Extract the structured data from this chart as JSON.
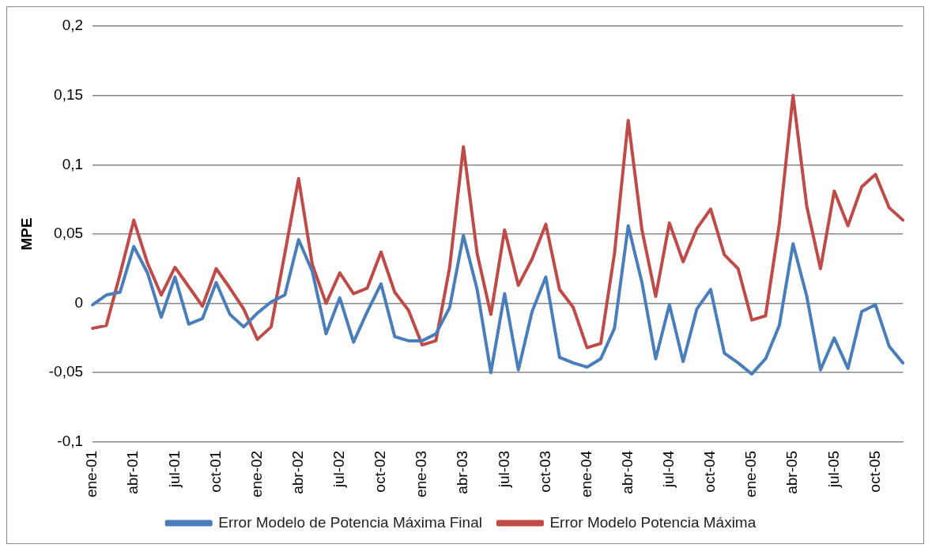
{
  "chart_data": {
    "type": "line",
    "ylabel": "MPE",
    "categories": [
      "ene-01",
      null,
      null,
      "abr-01",
      null,
      null,
      "jul-01",
      null,
      null,
      "oct-01",
      null,
      null,
      "ene-02",
      null,
      null,
      "abr-02",
      null,
      null,
      "jul-02",
      null,
      null,
      "oct-02",
      null,
      null,
      "ene-03",
      null,
      null,
      "abr-03",
      null,
      null,
      "jul-03",
      null,
      null,
      "oct-03",
      null,
      null,
      "ene-04",
      null,
      null,
      "abr-04",
      null,
      null,
      "jul-04",
      null,
      null,
      "oct-04",
      null,
      null,
      "ene-05",
      null,
      null,
      "abr-05",
      null,
      null,
      "jul-05",
      null,
      null,
      "oct-05",
      null,
      null
    ],
    "series": [
      {
        "name": "Error Modelo de Potencia Máxima Final",
        "color": "#4a7ebb",
        "values": [
          -0.001,
          0.006,
          0.008,
          0.041,
          0.022,
          -0.01,
          0.019,
          -0.015,
          -0.011,
          0.015,
          -0.008,
          -0.017,
          -0.007,
          0.001,
          0.006,
          0.046,
          0.023,
          -0.022,
          0.004,
          -0.028,
          -0.006,
          0.014,
          -0.024,
          -0.027,
          -0.027,
          -0.022,
          -0.003,
          0.049,
          0.01,
          -0.05,
          0.007,
          -0.048,
          -0.006,
          0.019,
          -0.039,
          -0.043,
          -0.046,
          -0.04,
          -0.018,
          0.056,
          0.015,
          -0.04,
          -0.001,
          -0.042,
          -0.004,
          0.01,
          -0.036,
          -0.043,
          -0.051,
          -0.04,
          -0.016,
          0.043,
          0.005,
          -0.048,
          -0.025,
          -0.047,
          -0.006,
          -0.001,
          -0.031,
          -0.043
        ]
      },
      {
        "name": "Error Modelo Potencia Máxima",
        "color": "#be4b48",
        "values": [
          -0.018,
          -0.016,
          0.021,
          0.06,
          0.029,
          0.006,
          0.026,
          0.012,
          -0.002,
          0.025,
          0.011,
          -0.004,
          -0.026,
          -0.017,
          0.036,
          0.09,
          0.028,
          0.0,
          0.022,
          0.007,
          0.011,
          0.037,
          0.008,
          -0.005,
          -0.03,
          -0.027,
          0.026,
          0.113,
          0.036,
          -0.008,
          0.053,
          0.013,
          0.032,
          0.057,
          0.01,
          -0.003,
          -0.032,
          -0.029,
          0.036,
          0.132,
          0.053,
          0.005,
          0.058,
          0.03,
          0.054,
          0.068,
          0.035,
          0.025,
          -0.012,
          -0.009,
          0.057,
          0.15,
          0.07,
          0.025,
          0.081,
          0.056,
          0.084,
          0.093,
          0.069,
          0.06
        ]
      }
    ],
    "ylim": [
      -0.1,
      0.2
    ],
    "yticks": [
      {
        "value": -0.1,
        "label": "-0,1"
      },
      {
        "value": -0.05,
        "label": "-0,05"
      },
      0,
      {
        "value": 0.05,
        "label": "0,05"
      },
      {
        "value": 0.1,
        "label": "0,1"
      },
      {
        "value": 0.15,
        "label": "0,15"
      },
      {
        "value": 0.2,
        "label": "0,2"
      }
    ],
    "grid": "y",
    "legend": "bottom",
    "marker": "none",
    "line_style": "solid"
  }
}
